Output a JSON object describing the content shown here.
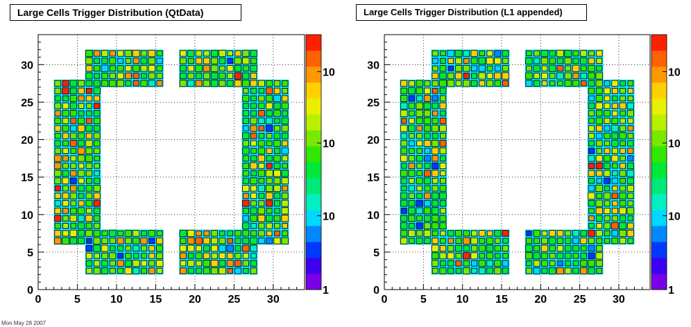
{
  "chart_data": [
    {
      "type": "heatmap",
      "title": "Large Cells Trigger Distribution (QtData)",
      "xlim": [
        0,
        34
      ],
      "ylim": [
        0,
        34
      ],
      "x_ticks": [
        "0",
        "5",
        "10",
        "15",
        "20",
        "25",
        "30"
      ],
      "y_ticks": [
        "0",
        "5",
        "10",
        "15",
        "20",
        "25",
        "30"
      ],
      "z_scale": "log",
      "z_tick_labels": [
        "1",
        "10",
        "10",
        "10"
      ],
      "grid": true,
      "variant": 0
    },
    {
      "type": "heatmap",
      "title": "Large Cells Trigger Distribution (L1 appended)",
      "xlim": [
        0,
        34
      ],
      "ylim": [
        0,
        34
      ],
      "x_ticks": [
        "0",
        "5",
        "10",
        "15",
        "20",
        "25",
        "30"
      ],
      "y_ticks": [
        "0",
        "5",
        "10",
        "15",
        "20",
        "25",
        "30"
      ],
      "z_scale": "log",
      "z_tick_labels": [
        "1",
        "10",
        "10",
        "10"
      ],
      "grid": true,
      "variant": 1
    }
  ],
  "palette": [
    "#7a00e8",
    "#3c00f0",
    "#0038ff",
    "#0088ff",
    "#00d8ff",
    "#00f0c0",
    "#00e878",
    "#00e838",
    "#32e800",
    "#78e800",
    "#b8f000",
    "#e8f000",
    "#ffd000",
    "#ff9800",
    "#ff6000",
    "#ff2000"
  ],
  "footer": "Mon May 28 2007"
}
